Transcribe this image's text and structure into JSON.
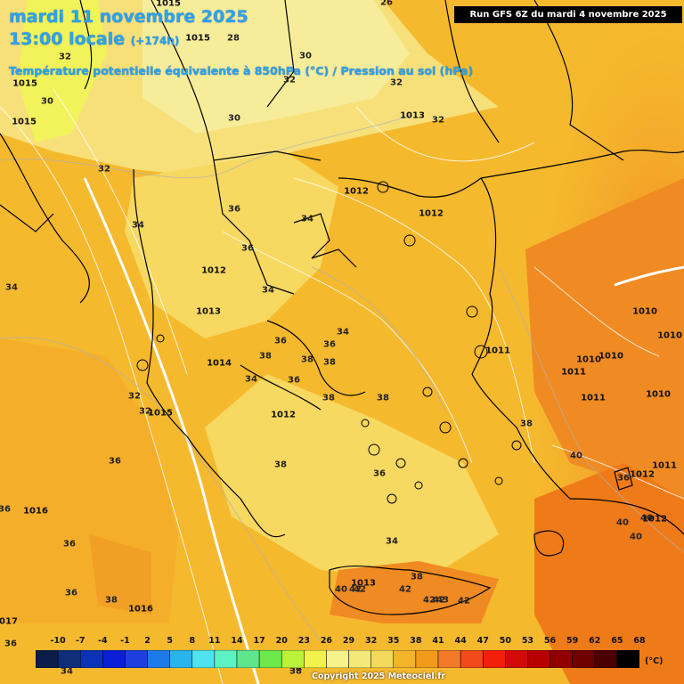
{
  "header": {
    "date": "mardi 11 novembre 2025",
    "time": "13:00 locale",
    "lead": "(+174h)",
    "title": "Température potentielle équivalente à 850hPa (°C) / Pression au sol (hPa)",
    "run": "Run GFS 6Z du mardi 4 novembre 2025"
  },
  "legend": {
    "values": [
      "-10",
      "-7",
      "-4",
      "-1",
      "2",
      "5",
      "8",
      "11",
      "14",
      "17",
      "20",
      "23",
      "26",
      "29",
      "32",
      "35",
      "38",
      "41",
      "44",
      "47",
      "50",
      "53",
      "56",
      "59",
      "62",
      "65",
      "68"
    ],
    "colors": [
      "#0b1d4b",
      "#0f2e7a",
      "#0c33b5",
      "#0a1fd6",
      "#1e3fe0",
      "#1e7ae8",
      "#29b4f0",
      "#4fe3f0",
      "#5df2c2",
      "#5fe68c",
      "#6be84a",
      "#b9f238",
      "#f2f24a",
      "#f7f28a",
      "#f2e97a",
      "#f2d95a",
      "#f2b42a",
      "#f29a1a",
      "#f27a2a",
      "#f24a1a",
      "#f2200a",
      "#d40a0a",
      "#b80000",
      "#900000",
      "#700000",
      "#4a0000",
      "#000000"
    ],
    "unit": "(°C)"
  },
  "copyright": "Copyright 2025 Meteociel.fr",
  "theta_labels": [
    "26",
    "28",
    "30",
    "32",
    "32",
    "30",
    "32",
    "32",
    "30",
    "32",
    "34",
    "34",
    "36",
    "34",
    "36",
    "34",
    "36",
    "36",
    "34",
    "38",
    "38",
    "36",
    "38",
    "38",
    "34",
    "34",
    "32",
    "32",
    "36",
    "36",
    "38",
    "36",
    "38",
    "38",
    "36",
    "36",
    "38",
    "40",
    "42",
    "40",
    "40",
    "40",
    "40",
    "42",
    "42",
    "42",
    "43",
    "42",
    "38",
    "36",
    "34",
    "34",
    "38",
    "36",
    "42"
  ],
  "pressure_labels": [
    "1015",
    "1015",
    "1015",
    "1015",
    "1013",
    "1012",
    "1012",
    "1012",
    "1013",
    "1014",
    "1015",
    "1012",
    "1016",
    "1016",
    "1017",
    "1011",
    "1011",
    "1010",
    "1010",
    "1011",
    "1010",
    "1010",
    "1010",
    "1011",
    "1012",
    "1012",
    "1013"
  ]
}
